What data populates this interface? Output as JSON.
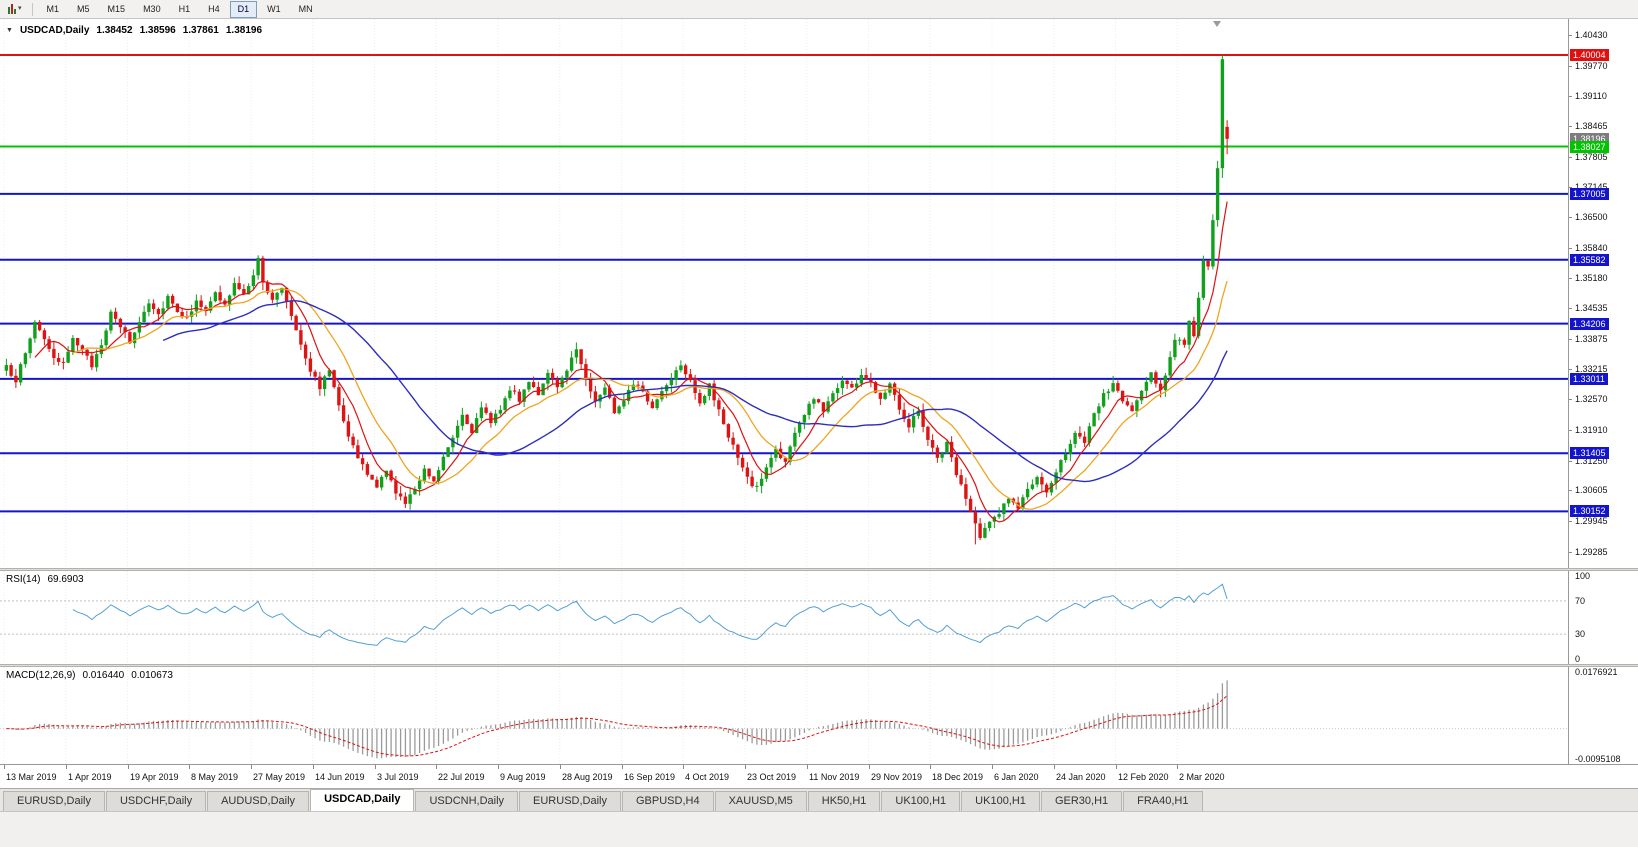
{
  "icons": {
    "caret_down": "▾",
    "symbol_dropdown": "▼"
  },
  "toolbar": {
    "timeframes": [
      {
        "label": "M1",
        "active": false
      },
      {
        "label": "M5",
        "active": false
      },
      {
        "label": "M15",
        "active": false
      },
      {
        "label": "M30",
        "active": false
      },
      {
        "label": "H1",
        "active": false
      },
      {
        "label": "H4",
        "active": false
      },
      {
        "label": "D1",
        "active": true
      },
      {
        "label": "W1",
        "active": false
      },
      {
        "label": "MN",
        "active": false
      }
    ]
  },
  "chart": {
    "header": {
      "symbol": "USDCAD,Daily",
      "open": "1.38452",
      "high": "1.38596",
      "low": "1.37861",
      "close": "1.38196"
    }
  },
  "indicators": {
    "rsi": {
      "name": "RSI(14)",
      "value": "69.6903",
      "levels": [
        100,
        70,
        30,
        0
      ],
      "line_color": "#53a0d4"
    },
    "macd": {
      "name": "MACD(12,26,9)",
      "value_main": "0.016440",
      "value_signal": "0.010673",
      "scale_max": 0.0176921,
      "scale_min": -0.0095108,
      "fast": 12,
      "slow": 26,
      "signal": 9,
      "histogram_color": "#9a9a9a",
      "signal_color": "#e01010"
    }
  },
  "chart_data": {
    "type": "candlestick",
    "title": "USDCAD,Daily",
    "symbol": "USDCAD",
    "timeframe": "Daily",
    "x_labels": [
      "13 Mar 2019",
      "1 Apr 2019",
      "19 Apr 2019",
      "8 May 2019",
      "27 May 2019",
      "14 Jun 2019",
      "3 Jul 2019",
      "22 Jul 2019",
      "9 Aug 2019",
      "28 Aug 2019",
      "16 Sep 2019",
      "4 Oct 2019",
      "23 Oct 2019",
      "11 Nov 2019",
      "29 Nov 2019",
      "18 Dec 2019",
      "6 Jan 2020",
      "24 Jan 2020",
      "12 Feb 2020",
      "2 Mar 2020"
    ],
    "label_every_days": 13,
    "days": 258,
    "left_pad": 4,
    "day_width": 4.75,
    "y_ticks": [
      "1.40430",
      "1.39770",
      "1.39110",
      "1.38465",
      "1.37805",
      "1.37145",
      "1.36500",
      "1.35840",
      "1.35180",
      "1.34535",
      "1.33875",
      "1.33215",
      "1.32570",
      "1.31910",
      "1.31250",
      "1.30605",
      "1.29945",
      "1.29285"
    ],
    "y_range": {
      "top": 1.4078,
      "bottom": 1.2893
    },
    "bull_color": "#10a01c",
    "bear_color": "#dc1414",
    "grid_color": "#ececec",
    "noise_amplitude": 0.0013,
    "wick_amplitude": 0.0016,
    "close_keypoints": [
      [
        0,
        1.3325
      ],
      [
        2,
        1.33
      ],
      [
        4,
        1.3355
      ],
      [
        6,
        1.3425
      ],
      [
        8,
        1.339
      ],
      [
        10,
        1.334
      ],
      [
        12,
        1.333
      ],
      [
        14,
        1.3395
      ],
      [
        16,
        1.336
      ],
      [
        18,
        1.333
      ],
      [
        20,
        1.338
      ],
      [
        22,
        1.344
      ],
      [
        24,
        1.3415
      ],
      [
        26,
        1.338
      ],
      [
        28,
        1.3425
      ],
      [
        30,
        1.347
      ],
      [
        32,
        1.344
      ],
      [
        34,
        1.348
      ],
      [
        36,
        1.345
      ],
      [
        38,
        1.343
      ],
      [
        40,
        1.3475
      ],
      [
        42,
        1.3445
      ],
      [
        44,
        1.3485
      ],
      [
        46,
        1.346
      ],
      [
        48,
        1.3505
      ],
      [
        50,
        1.348
      ],
      [
        52,
        1.353
      ],
      [
        53,
        1.3565
      ],
      [
        54,
        1.3505
      ],
      [
        56,
        1.347
      ],
      [
        58,
        1.35
      ],
      [
        60,
        1.344
      ],
      [
        62,
        1.338
      ],
      [
        64,
        1.332
      ],
      [
        66,
        1.3285
      ],
      [
        68,
        1.332
      ],
      [
        70,
        1.325
      ],
      [
        72,
        1.318
      ],
      [
        74,
        1.313
      ],
      [
        76,
        1.3095
      ],
      [
        78,
        1.307
      ],
      [
        80,
        1.31
      ],
      [
        82,
        1.306
      ],
      [
        84,
        1.303
      ],
      [
        86,
        1.3065
      ],
      [
        88,
        1.311
      ],
      [
        90,
        1.308
      ],
      [
        92,
        1.3135
      ],
      [
        94,
        1.318
      ],
      [
        96,
        1.3225
      ],
      [
        98,
        1.319
      ],
      [
        100,
        1.3235
      ],
      [
        102,
        1.321
      ],
      [
        104,
        1.324
      ],
      [
        106,
        1.328
      ],
      [
        108,
        1.3255
      ],
      [
        110,
        1.33
      ],
      [
        112,
        1.327
      ],
      [
        114,
        1.331
      ],
      [
        116,
        1.328
      ],
      [
        118,
        1.3325
      ],
      [
        120,
        1.3365
      ],
      [
        122,
        1.3305
      ],
      [
        124,
        1.325
      ],
      [
        126,
        1.3285
      ],
      [
        128,
        1.323
      ],
      [
        130,
        1.326
      ],
      [
        132,
        1.3295
      ],
      [
        134,
        1.327
      ],
      [
        136,
        1.324
      ],
      [
        138,
        1.3275
      ],
      [
        140,
        1.3305
      ],
      [
        142,
        1.3335
      ],
      [
        144,
        1.33
      ],
      [
        146,
        1.325
      ],
      [
        148,
        1.3285
      ],
      [
        150,
        1.323
      ],
      [
        152,
        1.318
      ],
      [
        154,
        1.313
      ],
      [
        156,
        1.3085
      ],
      [
        158,
        1.3065
      ],
      [
        160,
        1.311
      ],
      [
        162,
        1.315
      ],
      [
        164,
        1.312
      ],
      [
        166,
        1.3185
      ],
      [
        168,
        1.3225
      ],
      [
        170,
        1.326
      ],
      [
        172,
        1.3235
      ],
      [
        174,
        1.327
      ],
      [
        176,
        1.33
      ],
      [
        178,
        1.328
      ],
      [
        180,
        1.331
      ],
      [
        182,
        1.329
      ],
      [
        184,
        1.326
      ],
      [
        186,
        1.3295
      ],
      [
        188,
        1.324
      ],
      [
        190,
        1.32
      ],
      [
        192,
        1.3235
      ],
      [
        194,
        1.317
      ],
      [
        196,
        1.313
      ],
      [
        198,
        1.316
      ],
      [
        200,
        1.31
      ],
      [
        202,
        1.304
      ],
      [
        204,
        1.2985
      ],
      [
        205,
        1.296
      ],
      [
        207,
        1.299
      ],
      [
        209,
        1.3015
      ],
      [
        211,
        1.3045
      ],
      [
        213,
        1.302
      ],
      [
        215,
        1.3065
      ],
      [
        217,
        1.3085
      ],
      [
        219,
        1.305
      ],
      [
        221,
        1.3105
      ],
      [
        223,
        1.3145
      ],
      [
        225,
        1.3185
      ],
      [
        227,
        1.316
      ],
      [
        229,
        1.3225
      ],
      [
        231,
        1.3265
      ],
      [
        233,
        1.329
      ],
      [
        235,
        1.3255
      ],
      [
        237,
        1.323
      ],
      [
        239,
        1.3275
      ],
      [
        241,
        1.331
      ],
      [
        243,
        1.328
      ],
      [
        245,
        1.3345
      ],
      [
        246,
        1.339
      ],
      [
        248,
        1.338
      ],
      [
        249,
        1.342
      ],
      [
        250,
        1.339
      ],
      [
        251,
        1.347
      ],
      [
        252,
        1.356
      ],
      [
        253,
        1.354
      ],
      [
        254,
        1.365
      ],
      [
        255,
        1.375
      ],
      [
        256,
        1.399
      ],
      [
        257,
        1.38196
      ]
    ],
    "last_candle": {
      "open": 1.38452,
      "high": 1.38596,
      "low": 1.37861,
      "close": 1.38196
    },
    "overrides": [
      {
        "day": 53,
        "high": 1.3568
      },
      {
        "day": 204,
        "low": 1.2944
      },
      {
        "day": 256,
        "high": 1.40004,
        "low": 1.3735
      }
    ],
    "current_price": {
      "value": 1.38196,
      "label": "1.38196",
      "box_color": "#7d7d7d"
    },
    "horizontal_lines": [
      {
        "price": 1.40004,
        "label": "1.40004",
        "color": "#e01010",
        "width": 2
      },
      {
        "price": 1.38027,
        "label": "1.38027",
        "color": "#00c400",
        "width": 2
      },
      {
        "price": 1.37005,
        "label": "1.37005",
        "color": "#1414cd",
        "width": 2
      },
      {
        "price": 1.35582,
        "label": "1.35582",
        "color": "#1414cd",
        "width": 2
      },
      {
        "price": 1.34206,
        "label": "1.34206",
        "color": "#1414cd",
        "width": 2
      },
      {
        "price": 1.33011,
        "label": "1.33011",
        "color": "#1414cd",
        "width": 2
      },
      {
        "price": 1.31405,
        "label": "1.31405",
        "color": "#1414cd",
        "width": 2
      },
      {
        "price": 1.30152,
        "label": "1.30152",
        "color": "#1414cd",
        "width": 2
      }
    ],
    "moving_averages": [
      {
        "period": 7,
        "color": "#e01010",
        "width": 1.2
      },
      {
        "period": 15,
        "color": "#efa520",
        "width": 1.3
      },
      {
        "period": 34,
        "color": "#2e2ebe",
        "width": 1.4
      }
    ]
  },
  "tabs": [
    {
      "label": "EURUSD,Daily",
      "active": false
    },
    {
      "label": "USDCHF,Daily",
      "active": false
    },
    {
      "label": "AUDUSD,Daily",
      "active": false
    },
    {
      "label": "USDCAD,Daily",
      "active": true
    },
    {
      "label": "USDCNH,Daily",
      "active": false
    },
    {
      "label": "EURUSD,Daily",
      "active": false
    },
    {
      "label": "GBPUSD,H4",
      "active": false
    },
    {
      "label": "XAUUSD,M5",
      "active": false
    },
    {
      "label": "HK50,H1",
      "active": false
    },
    {
      "label": "UK100,H1",
      "active": false
    },
    {
      "label": "UK100,H1",
      "active": false
    },
    {
      "label": "GER30,H1",
      "active": false
    },
    {
      "label": "FRA40,H1",
      "active": false
    }
  ]
}
